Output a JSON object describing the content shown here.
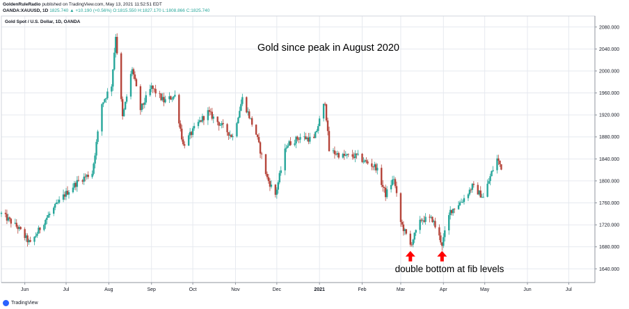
{
  "header": {
    "author": "GoldenRuleRadio",
    "published": "published on TradingView.com, May 13, 2021 11:52:51 EDT",
    "symbol": "OANDA:XAUUSD, 1D",
    "ohlc_text": "1825.740 ▲ +10.190 (+0.56%) O:1815.550 H:1827.170 L:1808.866 C:1825.740"
  },
  "footer": {
    "brand": "TradingView"
  },
  "colors": {
    "up": "#26a69a",
    "down": "#b5443a",
    "arrow": "#ff0000",
    "grid": "#e6e9ef",
    "axis": "#8f949e"
  },
  "chart_data": {
    "type": "candlestick",
    "instrument_label": "Gold Spot / U.S. Dollar, 1D, OANDA",
    "annotations": [
      {
        "text": "Gold since peak in August 2020"
      },
      {
        "text": "double bottom at fib levels"
      }
    ],
    "arrows": [
      {
        "date": "2021-03-08",
        "price": 1680
      },
      {
        "date": "2021-03-31",
        "price": 1680
      }
    ],
    "x_range": [
      "2020-05-15",
      "2021-07-20"
    ],
    "x_ticks": [
      {
        "label": "Jun",
        "date": "2020-06-01"
      },
      {
        "label": "Jul",
        "date": "2020-07-01"
      },
      {
        "label": "Aug",
        "date": "2020-08-01"
      },
      {
        "label": "Sep",
        "date": "2020-09-01"
      },
      {
        "label": "Oct",
        "date": "2020-10-01"
      },
      {
        "label": "Nov",
        "date": "2020-11-01"
      },
      {
        "label": "Dec",
        "date": "2020-12-01"
      },
      {
        "label": "2021",
        "date": "2021-01-01",
        "bold": true
      },
      {
        "label": "Feb",
        "date": "2021-02-01"
      },
      {
        "label": "Mar",
        "date": "2021-03-01"
      },
      {
        "label": "Apr",
        "date": "2021-04-01"
      },
      {
        "label": "May",
        "date": "2021-05-01"
      },
      {
        "label": "Jun",
        "date": "2021-06-01"
      },
      {
        "label": "Jul",
        "date": "2021-07-01"
      }
    ],
    "y_range": [
      1615,
      2100
    ],
    "y_ticks": [
      "2080.000",
      "2040.000",
      "2000.000",
      "1960.000",
      "1920.000",
      "1880.000",
      "1840.000",
      "1800.000",
      "1760.000",
      "1720.000",
      "1680.000",
      "1640.000"
    ],
    "anchors": [
      [
        "2020-05-15",
        1740
      ],
      [
        "2020-05-27",
        1715
      ],
      [
        "2020-06-05",
        1685
      ],
      [
        "2020-06-16",
        1730
      ],
      [
        "2020-06-30",
        1775
      ],
      [
        "2020-07-10",
        1800
      ],
      [
        "2020-07-20",
        1815
      ],
      [
        "2020-07-27",
        1940
      ],
      [
        "2020-08-03",
        1975
      ],
      [
        "2020-08-06",
        2065
      ],
      [
        "2020-08-11",
        1915
      ],
      [
        "2020-08-18",
        2005
      ],
      [
        "2020-08-24",
        1930
      ],
      [
        "2020-09-01",
        1970
      ],
      [
        "2020-09-10",
        1945
      ],
      [
        "2020-09-18",
        1955
      ],
      [
        "2020-09-24",
        1865
      ],
      [
        "2020-10-05",
        1905
      ],
      [
        "2020-10-12",
        1925
      ],
      [
        "2020-10-20",
        1905
      ],
      [
        "2020-10-30",
        1880
      ],
      [
        "2020-11-06",
        1950
      ],
      [
        "2020-11-16",
        1885
      ],
      [
        "2020-11-24",
        1805
      ],
      [
        "2020-11-30",
        1775
      ],
      [
        "2020-12-08",
        1865
      ],
      [
        "2020-12-18",
        1880
      ],
      [
        "2020-12-28",
        1875
      ],
      [
        "2021-01-05",
        1945
      ],
      [
        "2021-01-08",
        1855
      ],
      [
        "2021-01-18",
        1845
      ],
      [
        "2021-01-28",
        1845
      ],
      [
        "2021-02-03",
        1835
      ],
      [
        "2021-02-11",
        1825
      ],
      [
        "2021-02-18",
        1775
      ],
      [
        "2021-02-24",
        1805
      ],
      [
        "2021-03-01",
        1725
      ],
      [
        "2021-03-08",
        1683
      ],
      [
        "2021-03-16",
        1730
      ],
      [
        "2021-03-24",
        1730
      ],
      [
        "2021-03-31",
        1685
      ],
      [
        "2021-04-06",
        1745
      ],
      [
        "2021-04-15",
        1765
      ],
      [
        "2021-04-22",
        1790
      ],
      [
        "2021-04-30",
        1770
      ],
      [
        "2021-05-06",
        1815
      ],
      [
        "2021-05-10",
        1840
      ],
      [
        "2021-05-13",
        1825
      ]
    ]
  }
}
